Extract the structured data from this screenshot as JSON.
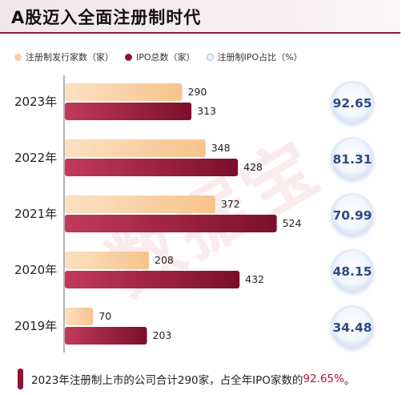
{
  "title": "A股迈入全面注册制时代",
  "legend": {
    "register": "注册制发行家数（家）",
    "ipo": "IPO总数（家）",
    "ratio": "注册制IPO占比（%）"
  },
  "watermark": "数据宝",
  "footnote": {
    "prefix": "2023年注册制上市的公司合计290家，占全年IPO家数的",
    "highlight": "92.65%",
    "suffix": "。"
  },
  "colors": {
    "register": "#f9cfa0",
    "ipo": "#8e1634",
    "ratio_text": "#2b4a86",
    "accent": "#b4123a"
  },
  "chart_data": {
    "type": "bar",
    "orientation": "horizontal",
    "categories": [
      "2023年",
      "2022年",
      "2021年",
      "2020年",
      "2019年"
    ],
    "series": [
      {
        "name": "注册制发行家数（家）",
        "values": [
          290,
          348,
          372,
          208,
          70
        ]
      },
      {
        "name": "IPO总数（家）",
        "values": [
          313,
          428,
          524,
          432,
          203
        ]
      }
    ],
    "ratio": {
      "name": "注册制IPO占比（%）",
      "values": [
        92.65,
        81.31,
        70.99,
        48.15,
        34.48
      ],
      "labels": [
        "92.65",
        "81.31",
        "70.99",
        "48.15",
        "34.48"
      ]
    },
    "xlim": [
      0,
      600
    ],
    "grid": false,
    "legend_position": "top-left"
  }
}
